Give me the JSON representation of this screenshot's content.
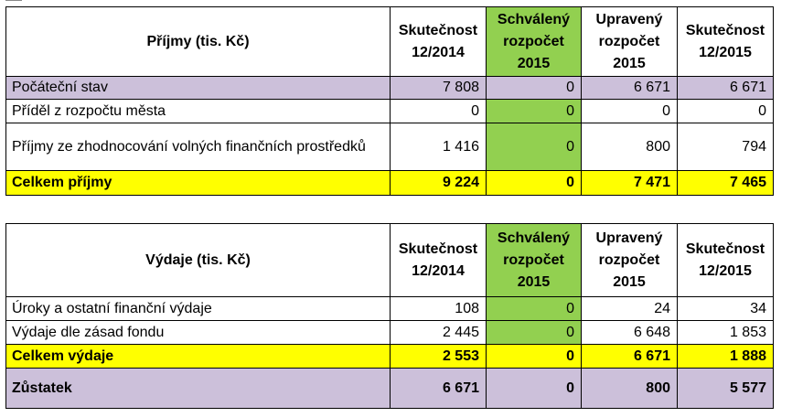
{
  "income_table": {
    "title": "Příjmy (tis. Kč)",
    "headers": [
      "Skutečnost 12/2014",
      "Schválený rozpočet 2015",
      "Upravený rozpočet 2015",
      "Skutečnost 12/2015"
    ],
    "rows": [
      {
        "label": "Počáteční stav",
        "values": [
          "7 808",
          "0",
          "6 671",
          "6 671"
        ]
      },
      {
        "label": "Příděl z rozpočtu města",
        "values": [
          "0",
          "0",
          "0",
          "0"
        ]
      },
      {
        "label": "Příjmy ze zhodnocování volných finančních prostředků",
        "values": [
          "1 416",
          "0",
          "800",
          "794"
        ]
      }
    ],
    "total": {
      "label": "Celkem příjmy",
      "values": [
        "9 224",
        "0",
        "7 471",
        "7 465"
      ]
    }
  },
  "expense_table": {
    "title": "Výdaje (tis. Kč)",
    "headers": [
      "Skutečnost 12/2014",
      "Schválený rozpočet 2015",
      "Upravený rozpočet 2015",
      "Skutečnost 12/2015"
    ],
    "rows": [
      {
        "label": "Úroky a ostatní finanční výdaje",
        "values": [
          "108",
          "0",
          "24",
          "34"
        ]
      },
      {
        "label": "Výdaje dle zásad fondu",
        "values": [
          "2 445",
          "0",
          "6 648",
          "1 853"
        ]
      }
    ],
    "total": {
      "label": "Celkem výdaje",
      "values": [
        "2 553",
        "0",
        "6 671",
        "1 888"
      ]
    },
    "balance": {
      "label": "Zůstatek",
      "values": [
        "6 671",
        "0",
        "800",
        "5 577"
      ]
    }
  },
  "colors": {
    "approved_budget_column": "#92d050",
    "total_row": "#ffff00",
    "opening_and_balance_row": "#ccc0da"
  }
}
